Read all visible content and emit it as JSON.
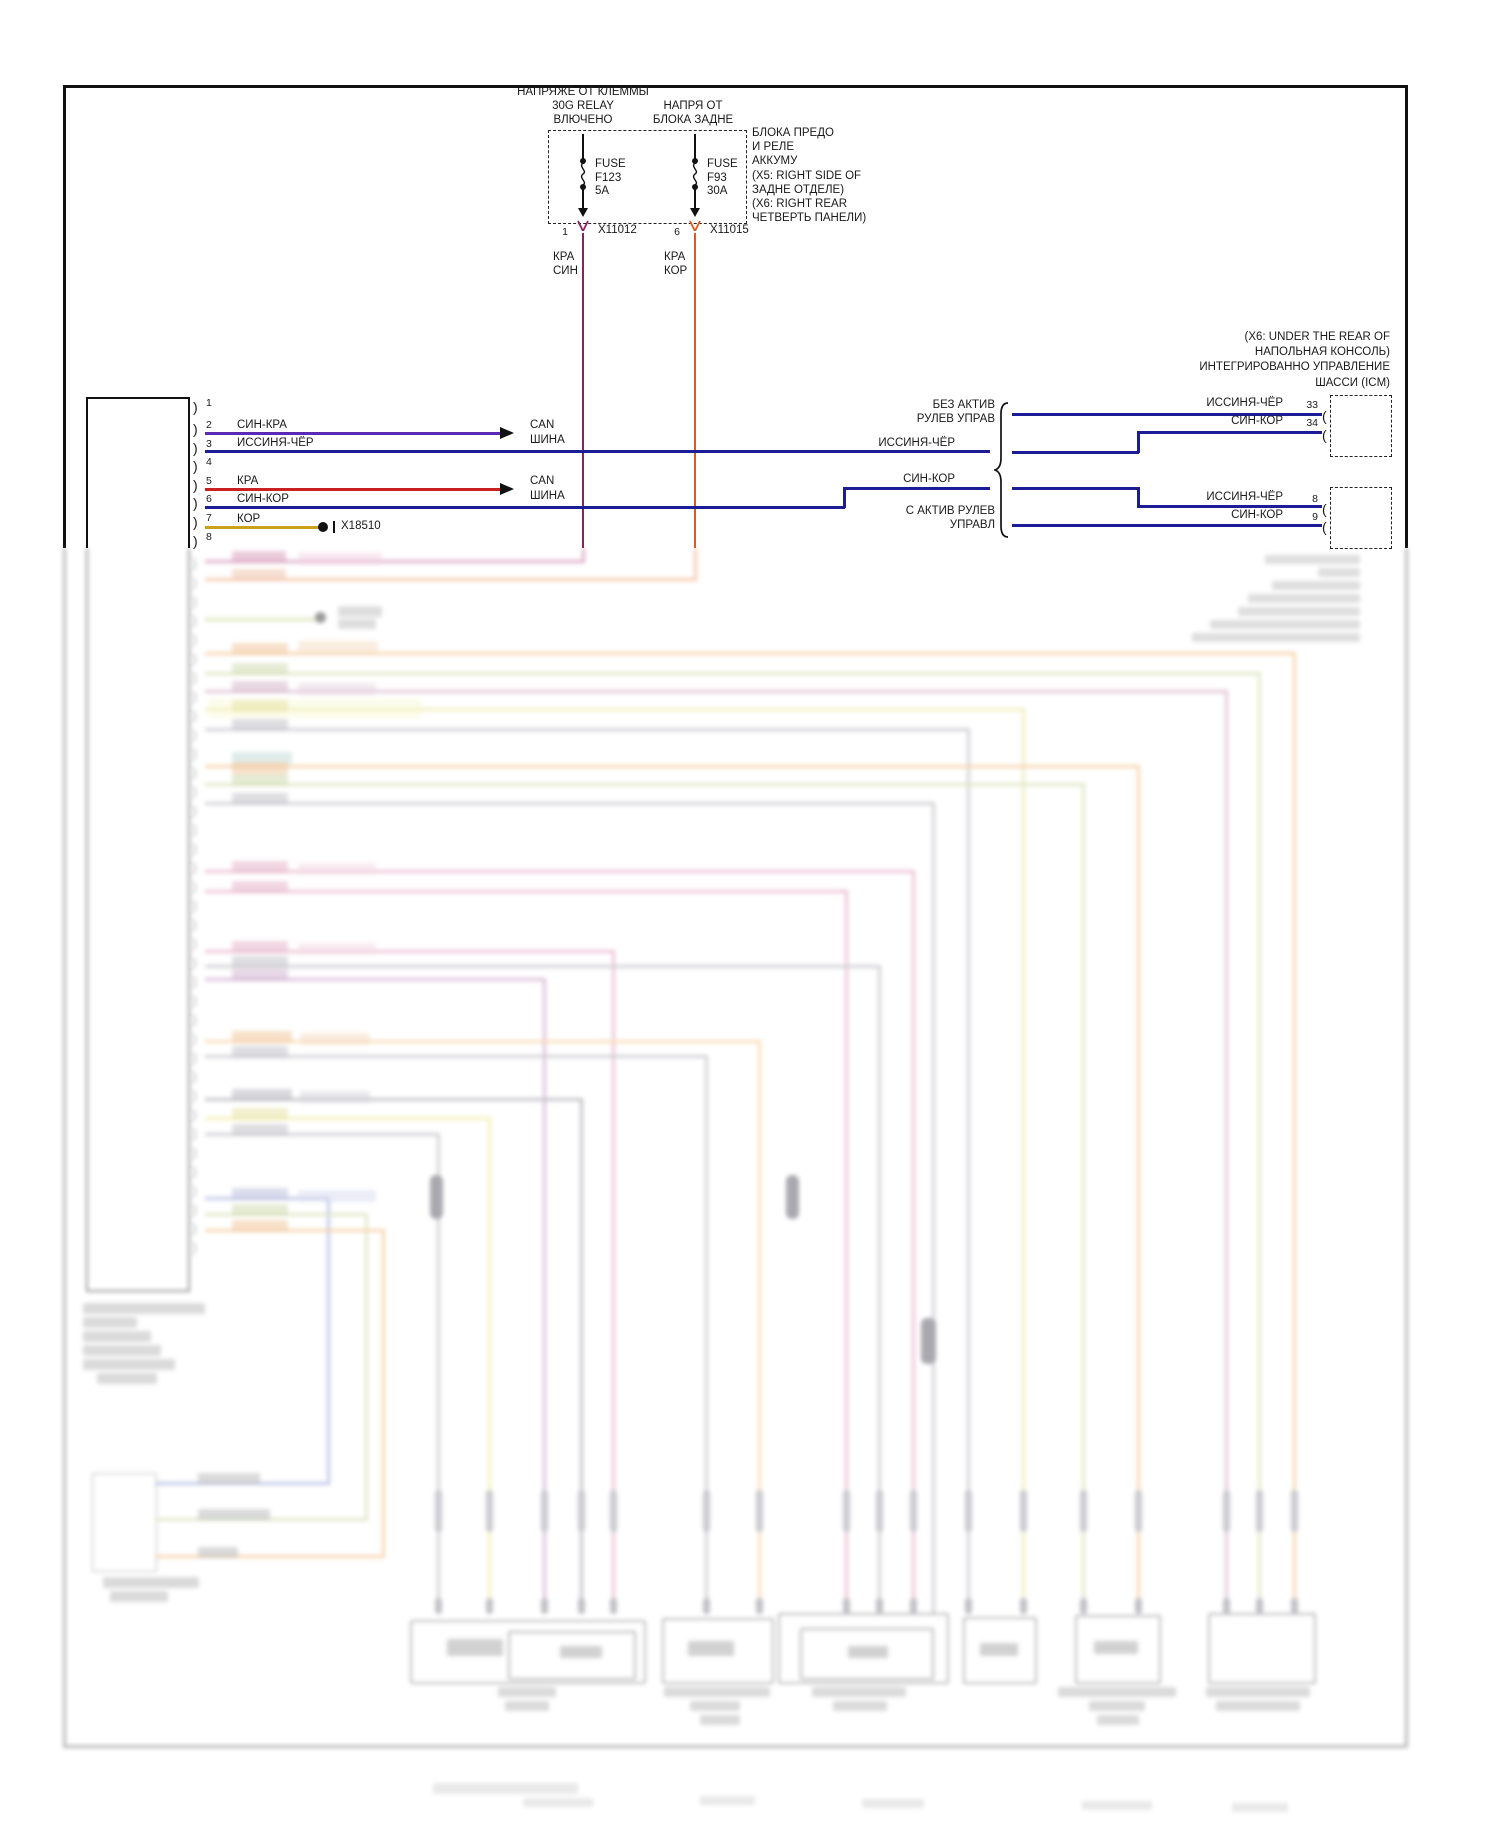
{
  "colors": {
    "wire_blue": "#1c1c96",
    "wire_purple": "#5a2ab4",
    "wire_red": "#cc2020",
    "wire_olive": "#c9a21a",
    "wire_maroon": "#8e2060",
    "wire_orangered": "#e0581c",
    "line_black": "#1a1a1a"
  },
  "power": {
    "feed1": {
      "title1": "НАПРЯЖЕ ОТ КЛЕММЫ",
      "title2": "30G RELAY",
      "title3": "ВЛЮЧЕНО",
      "fuse1": "FUSE",
      "fuse2": "F123",
      "fuse3": "5A",
      "pin": "1",
      "connector": "X11012",
      "wire1": "КРА",
      "wire2": "СИН"
    },
    "feed2": {
      "title1": "НАПРЯ ОТ",
      "title2": "БЛОКА ЗАДНЕ",
      "fuse1": "FUSE",
      "fuse2": "F93",
      "fuse3": "30A",
      "pin": "6",
      "connector": "X11015",
      "wire1": "КРА",
      "wire2": "КОР"
    },
    "location_note": [
      "БЛОКА ПРЕДО",
      "И РЕЛЕ",
      "АККУМУ",
      "(X5: RIGHT SIDE OF",
      "ЗАДНЕ ОТДЕЛЕ)",
      "(X6: RIGHT REAR",
      "ЧЕТВЕРТЬ ПАНЕЛИ)"
    ]
  },
  "left_connector": {
    "pins": [
      "1",
      "2",
      "3",
      "4",
      "5",
      "6",
      "7",
      "8"
    ],
    "wire2": "СИН-КРА",
    "wire3": "ИССИНЯ-ЧЁР",
    "wire5": "КРА",
    "wire6": "СИН-КОР",
    "wire7": "КОР",
    "can1a": "CAN",
    "can1b": "ШИНА",
    "can2a": "CAN",
    "can2b": "ШИНА",
    "splice": "X18510"
  },
  "icm": {
    "header": [
      "(X6: UNDER THE REAR OF",
      "НАПОЛЬНАЯ КОНСОЛЬ)",
      "ИНТЕГРИРОВАННО УПРАВЛЕНИЕ",
      "ШАССИ (ICM)"
    ],
    "branch_top1": "БЕЗ АКТИВ",
    "branch_top2": "РУЛЕВ УПРАВ",
    "branch_bottom1": "С АКТИВ РУЛЕВ",
    "branch_bottom2": "УПРАВЛ",
    "mid_issinya": "ИССИНЯ-ЧЁР",
    "mid_sinkor": "СИН-КОР",
    "conn_a": {
      "r1_label": "ИССИНЯ-ЧЁР",
      "r1_pin": "33",
      "r2_label": "СИН-КОР",
      "r2_pin": "34"
    },
    "conn_b": {
      "r1_label": "ИССИНЯ-ЧЁР",
      "r1_pin": "8",
      "r2_label": "СИН-КОР",
      "r2_pin": "9"
    }
  }
}
